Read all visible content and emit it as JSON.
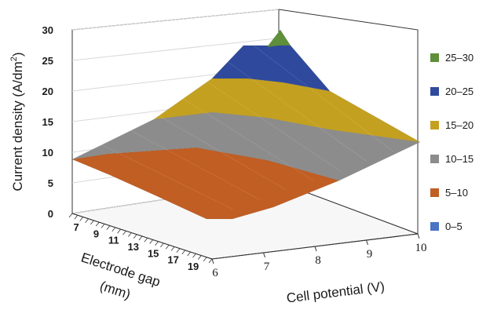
{
  "chart_data": {
    "type": "surface",
    "title": "",
    "xlabel": "Cell potential (V)",
    "ylabel": "Electrode gap (mm)",
    "ylabel_lines": [
      "Electrode gap",
      "(mm)"
    ],
    "zlabel": "Current density (A/dm²)",
    "zlabel_main": "Current density (A/dm",
    "zlabel_sup": "2",
    "zlabel_end": ")",
    "x_ticks": [
      "6",
      "7",
      "8",
      "9",
      "10"
    ],
    "y_ticks": [
      "7",
      "9",
      "11",
      "13",
      "15",
      "17",
      "19"
    ],
    "z_ticks": [
      "0",
      "5",
      "10",
      "15",
      "20",
      "25",
      "30"
    ],
    "zlim": [
      0,
      30
    ],
    "legend_position": "right",
    "bands": [
      {
        "label": "25–30",
        "color": "#5f8f3a"
      },
      {
        "label": "20–25",
        "color": "#2f4a9c"
      },
      {
        "label": "15–20",
        "color": "#c4a020"
      },
      {
        "label": "10–15",
        "color": "#8c8c8c"
      },
      {
        "label": "5–10",
        "color": "#c05e24"
      },
      {
        "label": "0–5",
        "color": "#4a74c4"
      }
    ],
    "surface_corners": [
      {
        "cell_potential": 6,
        "electrode_gap": 7,
        "current_density": 9
      },
      {
        "cell_potential": 10,
        "electrode_gap": 7,
        "current_density": 29
      },
      {
        "cell_potential": 10,
        "electrode_gap": 19,
        "current_density": 11
      },
      {
        "cell_potential": 6,
        "electrode_gap": 19,
        "current_density": 6
      }
    ]
  }
}
